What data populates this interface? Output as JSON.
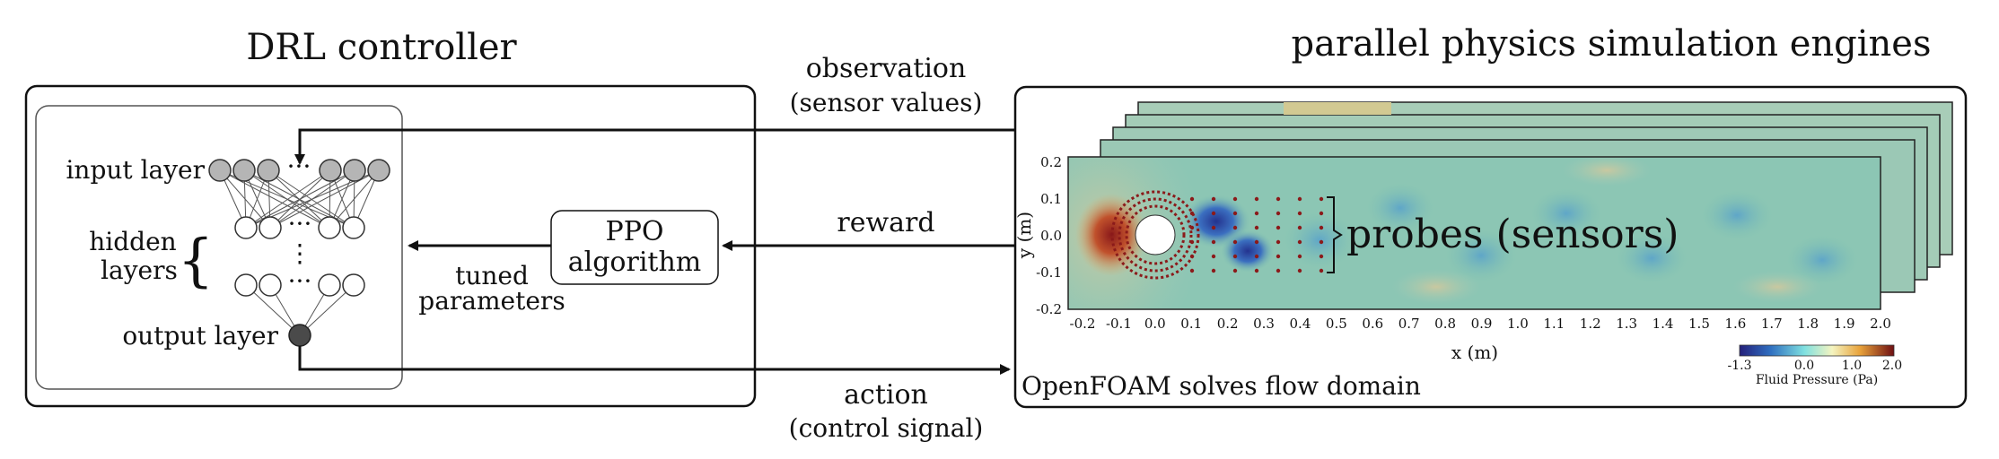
{
  "titles": {
    "drl_controller": "DRL controller",
    "simulation": "parallel physics simulation engines"
  },
  "network": {
    "input_layer": "input layer",
    "hidden_line1": "hidden",
    "hidden_line2": "layers",
    "output_layer": "output layer",
    "ellipsis": "···"
  },
  "ppo": {
    "line1": "PPO",
    "line2": "algorithm"
  },
  "arrows": {
    "observation": "observation",
    "observation_sub": "(sensor values)",
    "reward": "reward",
    "tuned_line1": "tuned",
    "tuned_line2": "parameters",
    "action": "action",
    "action_sub": "(control signal)"
  },
  "plot": {
    "xlabel": "x (m)",
    "ylabel": "y (m)",
    "x_ticks": [
      "-0.2",
      "-0.1",
      "0.0",
      "0.1",
      "0.2",
      "0.3",
      "0.4",
      "0.5",
      "0.6",
      "0.7",
      "0.8",
      "0.9",
      "1.0",
      "1.1",
      "1.2",
      "1.3",
      "1.4",
      "1.5",
      "1.6",
      "1.7",
      "1.8",
      "1.9",
      "2.0"
    ],
    "y_ticks": [
      "0.2",
      "0.1",
      "0.0",
      "-0.1",
      "-0.2"
    ],
    "probes_label": "probes (sensors)",
    "openfoam_label": "OpenFOAM solves flow domain",
    "colorbar": {
      "ticks": [
        "-1.3",
        "0.0",
        "1.0",
        "2.0"
      ],
      "label": "Fluid Pressure (Pa)"
    }
  },
  "colors": {
    "field_base": "#7fc2b2",
    "vortex_low": "#2e3fa0",
    "stagnation_high": "#8b1a1a",
    "probe_dot": "#8b1a1a",
    "output_node": "#4a4a4a",
    "input_node": "#b5b5b5"
  }
}
